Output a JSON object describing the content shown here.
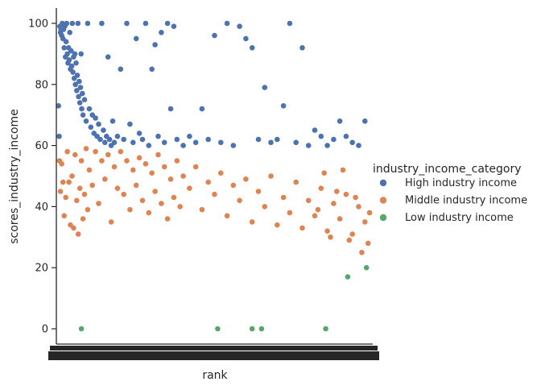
{
  "chart_data": {
    "type": "scatter",
    "xlabel": "rank",
    "ylabel": "scores_industry_income",
    "ylim": [
      -5,
      105
    ],
    "yticks": [
      0,
      20,
      40,
      60,
      80,
      100
    ],
    "x_tick_labels": "dense, overlapping (rank categories)",
    "grid": false,
    "legend": {
      "title": "industry_income_category",
      "placement": "right",
      "entries": [
        "High industry income",
        "Middle industry income",
        "Low industry income"
      ]
    },
    "colors": {
      "High industry income": "#4c72b0",
      "Middle industry income": "#dd8452",
      "Low industry income": "#55a868"
    },
    "series": [
      {
        "name": "High industry income",
        "x_range": [
          1,
          1000
        ],
        "trend": "decreasing from ~99 at top ranks to ~60 by mid ranks; scattered points at 100",
        "points": [
          [
            2,
            73
          ],
          [
            4,
            63
          ],
          [
            6,
            99
          ],
          [
            8,
            97
          ],
          [
            10,
            98
          ],
          [
            12,
            96
          ],
          [
            14,
            100
          ],
          [
            16,
            95
          ],
          [
            18,
            98
          ],
          [
            20,
            92
          ],
          [
            22,
            99
          ],
          [
            24,
            89
          ],
          [
            26,
            94
          ],
          [
            28,
            100
          ],
          [
            30,
            90
          ],
          [
            32,
            87
          ],
          [
            34,
            92
          ],
          [
            36,
            88
          ],
          [
            38,
            97
          ],
          [
            40,
            85
          ],
          [
            42,
            91
          ],
          [
            44,
            86
          ],
          [
            46,
            100
          ],
          [
            48,
            84
          ],
          [
            50,
            89
          ],
          [
            52,
            82
          ],
          [
            54,
            90
          ],
          [
            56,
            80
          ],
          [
            58,
            87
          ],
          [
            60,
            78
          ],
          [
            62,
            83
          ],
          [
            64,
            100
          ],
          [
            66,
            76
          ],
          [
            68,
            81
          ],
          [
            70,
            74
          ],
          [
            72,
            79
          ],
          [
            74,
            90
          ],
          [
            76,
            72
          ],
          [
            78,
            77
          ],
          [
            80,
            70
          ],
          [
            85,
            75
          ],
          [
            90,
            68
          ],
          [
            95,
            100
          ],
          [
            100,
            72
          ],
          [
            105,
            66
          ],
          [
            110,
            70
          ],
          [
            115,
            64
          ],
          [
            120,
            69
          ],
          [
            125,
            63
          ],
          [
            130,
            67
          ],
          [
            135,
            62
          ],
          [
            140,
            100
          ],
          [
            145,
            65
          ],
          [
            150,
            61
          ],
          [
            155,
            63
          ],
          [
            160,
            89
          ],
          [
            165,
            62
          ],
          [
            170,
            60
          ],
          [
            175,
            68
          ],
          [
            180,
            61
          ],
          [
            190,
            63
          ],
          [
            200,
            85
          ],
          [
            210,
            62
          ],
          [
            220,
            100
          ],
          [
            230,
            67
          ],
          [
            240,
            61
          ],
          [
            250,
            95
          ],
          [
            260,
            64
          ],
          [
            270,
            62
          ],
          [
            280,
            100
          ],
          [
            290,
            60
          ],
          [
            300,
            85
          ],
          [
            310,
            93
          ],
          [
            320,
            63
          ],
          [
            330,
            97
          ],
          [
            340,
            61
          ],
          [
            350,
            100
          ],
          [
            360,
            72
          ],
          [
            370,
            99
          ],
          [
            380,
            62
          ],
          [
            400,
            60
          ],
          [
            420,
            63
          ],
          [
            440,
            61
          ],
          [
            460,
            72
          ],
          [
            480,
            62
          ],
          [
            500,
            96
          ],
          [
            520,
            61
          ],
          [
            540,
            100
          ],
          [
            560,
            60
          ],
          [
            580,
            99
          ],
          [
            600,
            95
          ],
          [
            620,
            92
          ],
          [
            640,
            62
          ],
          [
            660,
            79
          ],
          [
            680,
            61
          ],
          [
            700,
            62
          ],
          [
            720,
            73
          ],
          [
            740,
            100
          ],
          [
            760,
            61
          ],
          [
            780,
            92
          ],
          [
            800,
            60
          ],
          [
            820,
            65
          ],
          [
            840,
            63
          ],
          [
            860,
            60
          ],
          [
            880,
            62
          ],
          [
            900,
            68
          ],
          [
            920,
            63
          ],
          [
            940,
            61
          ],
          [
            960,
            60
          ],
          [
            980,
            68
          ]
        ]
      },
      {
        "name": "Middle industry income",
        "x_range": [
          1,
          1000
        ],
        "trend": "band between ~30 and ~60, decreasing slightly with rank",
        "points": [
          [
            5,
            55
          ],
          [
            8,
            45
          ],
          [
            12,
            54
          ],
          [
            16,
            48
          ],
          [
            20,
            37
          ],
          [
            25,
            43
          ],
          [
            30,
            58
          ],
          [
            35,
            48
          ],
          [
            40,
            34
          ],
          [
            45,
            50
          ],
          [
            50,
            33
          ],
          [
            55,
            57
          ],
          [
            60,
            42
          ],
          [
            65,
            31
          ],
          [
            70,
            46
          ],
          [
            75,
            55
          ],
          [
            80,
            36
          ],
          [
            85,
            44
          ],
          [
            90,
            59
          ],
          [
            95,
            39
          ],
          [
            100,
            52
          ],
          [
            110,
            47
          ],
          [
            120,
            58
          ],
          [
            130,
            41
          ],
          [
            140,
            55
          ],
          [
            150,
            49
          ],
          [
            160,
            57
          ],
          [
            170,
            35
          ],
          [
            180,
            53
          ],
          [
            190,
            46
          ],
          [
            200,
            58
          ],
          [
            210,
            44
          ],
          [
            220,
            55
          ],
          [
            230,
            39
          ],
          [
            240,
            52
          ],
          [
            250,
            47
          ],
          [
            260,
            56
          ],
          [
            270,
            42
          ],
          [
            280,
            54
          ],
          [
            290,
            38
          ],
          [
            300,
            51
          ],
          [
            310,
            45
          ],
          [
            320,
            57
          ],
          [
            330,
            41
          ],
          [
            340,
            53
          ],
          [
            350,
            36
          ],
          [
            360,
            49
          ],
          [
            370,
            43
          ],
          [
            380,
            55
          ],
          [
            390,
            40
          ],
          [
            400,
            50
          ],
          [
            420,
            46
          ],
          [
            440,
            53
          ],
          [
            460,
            39
          ],
          [
            480,
            48
          ],
          [
            500,
            44
          ],
          [
            520,
            51
          ],
          [
            540,
            37
          ],
          [
            560,
            47
          ],
          [
            580,
            42
          ],
          [
            600,
            49
          ],
          [
            620,
            35
          ],
          [
            640,
            45
          ],
          [
            660,
            40
          ],
          [
            680,
            50
          ],
          [
            700,
            34
          ],
          [
            720,
            43
          ],
          [
            740,
            38
          ],
          [
            760,
            48
          ],
          [
            780,
            33
          ],
          [
            800,
            42
          ],
          [
            820,
            37
          ],
          [
            840,
            46
          ],
          [
            860,
            32
          ],
          [
            880,
            41
          ],
          [
            900,
            36
          ],
          [
            920,
            44
          ],
          [
            940,
            31
          ],
          [
            960,
            40
          ],
          [
            980,
            35
          ],
          [
            990,
            28
          ],
          [
            995,
            38
          ],
          [
            970,
            25
          ],
          [
            950,
            43
          ],
          [
            930,
            29
          ],
          [
            910,
            52
          ],
          [
            890,
            45
          ],
          [
            870,
            30
          ],
          [
            850,
            51
          ],
          [
            830,
            39
          ]
        ]
      },
      {
        "name": "Low industry income",
        "points": [
          [
            75,
            0
          ],
          [
            510,
            0
          ],
          [
            620,
            0
          ],
          [
            650,
            0
          ],
          [
            855,
            0
          ],
          [
            925,
            17
          ],
          [
            985,
            20
          ]
        ]
      }
    ]
  }
}
